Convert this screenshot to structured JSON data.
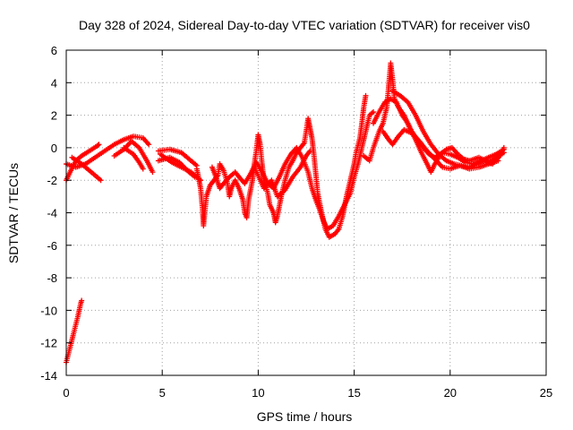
{
  "chart_data": {
    "type": "scatter",
    "title": "Day 328 of 2024, Sidereal Day-to-day VTEC variation (SDTVAR) for receiver vis0",
    "xlabel": "GPS time / hours",
    "ylabel": "SDTVAR / TECUs",
    "xlim": [
      0,
      25
    ],
    "ylim": [
      -14,
      6
    ],
    "xticks": [
      "0",
      "5",
      "10",
      "15",
      "20",
      "25"
    ],
    "yticks": [
      "6",
      "4",
      "2",
      "0",
      "-2",
      "-4",
      "-6",
      "-8",
      "-10",
      "-12",
      "-14"
    ],
    "grid": true,
    "marker": "+",
    "series": [
      {
        "name": "SDTVAR",
        "color": "#ff0000",
        "segments": [
          [
            [
              0.0,
              -13.2
            ],
            [
              0.15,
              -12.5
            ],
            [
              0.3,
              -11.8
            ],
            [
              0.45,
              -11.1
            ],
            [
              0.6,
              -10.4
            ],
            [
              0.75,
              -9.6
            ],
            [
              0.8,
              -9.4
            ]
          ],
          [
            [
              0.0,
              -2.0
            ],
            [
              0.2,
              -1.5
            ],
            [
              0.5,
              -0.8
            ],
            [
              0.8,
              -0.5
            ],
            [
              1.2,
              -0.2
            ],
            [
              1.6,
              0.1
            ],
            [
              1.7,
              0.2
            ]
          ],
          [
            [
              0.0,
              -1.0
            ],
            [
              0.5,
              -1.2
            ],
            [
              1.0,
              -1.0
            ],
            [
              1.5,
              -0.6
            ],
            [
              2.0,
              -0.2
            ],
            [
              2.5,
              0.2
            ],
            [
              3.0,
              0.5
            ],
            [
              3.5,
              0.7
            ],
            [
              4.0,
              0.6
            ],
            [
              4.3,
              0.2
            ]
          ],
          [
            [
              0.3,
              -0.6
            ],
            [
              0.8,
              -1.0
            ],
            [
              1.2,
              -1.4
            ],
            [
              1.5,
              -1.7
            ],
            [
              1.8,
              -2.0
            ]
          ],
          [
            [
              2.5,
              -0.5
            ],
            [
              3.0,
              -0.1
            ],
            [
              3.4,
              0.4
            ],
            [
              3.8,
              0.0
            ],
            [
              4.2,
              -0.8
            ],
            [
              4.5,
              -1.5
            ]
          ],
          [
            [
              3.0,
              0.0
            ],
            [
              3.5,
              -0.4
            ],
            [
              3.8,
              -0.9
            ],
            [
              4.0,
              -1.3
            ]
          ],
          [
            [
              4.8,
              -0.2
            ],
            [
              5.4,
              -0.1
            ],
            [
              6.0,
              -0.3
            ],
            [
              6.4,
              -0.7
            ],
            [
              6.8,
              -1.1
            ]
          ],
          [
            [
              4.8,
              -0.8
            ],
            [
              5.4,
              -0.6
            ],
            [
              5.9,
              -0.9
            ],
            [
              6.3,
              -1.4
            ],
            [
              6.7,
              -1.8
            ]
          ],
          [
            [
              4.9,
              -0.4
            ],
            [
              5.5,
              -0.9
            ],
            [
              6.0,
              -1.2
            ],
            [
              6.5,
              -1.5
            ],
            [
              7.0,
              -2.0
            ]
          ],
          [
            [
              6.8,
              -1.3
            ],
            [
              7.0,
              -2.5
            ],
            [
              7.1,
              -3.8
            ],
            [
              7.15,
              -4.8
            ],
            [
              7.3,
              -3.0
            ],
            [
              7.5,
              -2.3
            ],
            [
              7.7,
              -2.0
            ],
            [
              7.9,
              -1.7
            ],
            [
              8.0,
              -1.0
            ],
            [
              8.2,
              -1.4
            ],
            [
              8.4,
              -2.2
            ],
            [
              8.5,
              -3.0
            ],
            [
              8.6,
              -2.5
            ],
            [
              8.8,
              -2.0
            ],
            [
              9.0,
              -2.5
            ],
            [
              9.2,
              -3.2
            ],
            [
              9.3,
              -4.0
            ],
            [
              9.4,
              -4.3
            ],
            [
              9.5,
              -3.2
            ],
            [
              9.7,
              -2.0
            ],
            [
              9.8,
              -1.0
            ],
            [
              9.9,
              -0.2
            ],
            [
              10.0,
              0.8
            ],
            [
              10.1,
              0.2
            ],
            [
              10.2,
              -1.0
            ],
            [
              10.3,
              -2.0
            ],
            [
              10.5,
              -2.8
            ],
            [
              10.6,
              -3.5
            ],
            [
              10.8,
              -4.0
            ],
            [
              10.9,
              -4.6
            ],
            [
              11.0,
              -4.2
            ],
            [
              11.2,
              -3.0
            ],
            [
              11.4,
              -2.0
            ],
            [
              11.6,
              -1.2
            ],
            [
              11.8,
              -0.8
            ],
            [
              12.0,
              -0.3
            ],
            [
              12.2,
              0.0
            ],
            [
              12.4,
              0.3
            ],
            [
              12.5,
              1.0
            ],
            [
              12.6,
              1.8
            ],
            [
              12.7,
              1.2
            ],
            [
              12.8,
              0.6
            ],
            [
              12.9,
              -0.4
            ],
            [
              13.0,
              -1.6
            ],
            [
              13.1,
              -2.8
            ],
            [
              13.3,
              -4.0
            ],
            [
              13.5,
              -5.0
            ],
            [
              13.7,
              -5.5
            ],
            [
              14.0,
              -5.3
            ],
            [
              14.2,
              -5.0
            ],
            [
              14.4,
              -4.2
            ],
            [
              14.6,
              -3.0
            ],
            [
              14.8,
              -2.0
            ],
            [
              15.0,
              -1.0
            ],
            [
              15.1,
              -0.3
            ],
            [
              15.3,
              0.6
            ],
            [
              15.4,
              1.5
            ],
            [
              15.5,
              2.5
            ],
            [
              15.6,
              3.2
            ]
          ],
          [
            [
              7.6,
              -1.2
            ],
            [
              7.8,
              -1.8
            ],
            [
              8.0,
              -2.5
            ],
            [
              8.2,
              -2.2
            ],
            [
              8.5,
              -1.8
            ],
            [
              8.8,
              -1.5
            ],
            [
              9.0,
              -1.8
            ],
            [
              9.3,
              -2.2
            ],
            [
              9.6,
              -1.6
            ],
            [
              9.9,
              -0.9
            ],
            [
              10.2,
              -1.5
            ],
            [
              10.5,
              -2.2
            ],
            [
              10.8,
              -2.5
            ],
            [
              11.1,
              -1.8
            ],
            [
              11.4,
              -1.0
            ],
            [
              11.7,
              -0.4
            ],
            [
              12.0,
              0.0
            ],
            [
              12.3,
              -0.6
            ],
            [
              12.6,
              -1.5
            ],
            [
              12.8,
              -2.5
            ],
            [
              13.0,
              -3.2
            ],
            [
              13.2,
              -3.8
            ],
            [
              13.4,
              -4.5
            ],
            [
              13.6,
              -5.0
            ],
            [
              13.9,
              -4.8
            ],
            [
              14.2,
              -4.2
            ],
            [
              14.5,
              -3.5
            ],
            [
              14.8,
              -2.8
            ],
            [
              15.0,
              -1.8
            ],
            [
              15.2,
              -1.0
            ],
            [
              15.4,
              0.0
            ],
            [
              15.6,
              1.0
            ],
            [
              15.8,
              2.0
            ],
            [
              16.0,
              2.2
            ]
          ],
          [
            [
              9.8,
              -1.2
            ],
            [
              10.3,
              -2.5
            ],
            [
              10.7,
              -2.0
            ],
            [
              11.0,
              -3.0
            ],
            [
              11.4,
              -2.6
            ],
            [
              11.8,
              -1.8
            ],
            [
              12.2,
              -1.2
            ],
            [
              12.5,
              -0.5
            ],
            [
              12.7,
              -0.2
            ]
          ],
          [
            [
              15.5,
              -0.5
            ],
            [
              15.8,
              -0.8
            ],
            [
              16.0,
              0.0
            ],
            [
              16.3,
              1.0
            ],
            [
              16.5,
              1.5
            ],
            [
              16.7,
              2.5
            ],
            [
              16.8,
              3.8
            ],
            [
              16.9,
              5.2
            ],
            [
              17.0,
              4.2
            ],
            [
              17.1,
              3.0
            ],
            [
              17.3,
              2.5
            ],
            [
              17.6,
              2.0
            ],
            [
              17.9,
              1.2
            ],
            [
              18.2,
              0.5
            ],
            [
              18.5,
              -0.3
            ],
            [
              18.8,
              -1.0
            ],
            [
              19.0,
              -1.5
            ],
            [
              19.2,
              -1.0
            ],
            [
              19.5,
              -0.4
            ],
            [
              19.8,
              -0.1
            ],
            [
              20.1,
              0.0
            ],
            [
              20.4,
              -0.4
            ],
            [
              20.7,
              -0.7
            ],
            [
              21.0,
              -0.8
            ],
            [
              21.5,
              -0.6
            ],
            [
              22.0,
              -0.9
            ],
            [
              22.4,
              -0.6
            ],
            [
              22.8,
              -0.3
            ]
          ],
          [
            [
              16.0,
              1.5
            ],
            [
              16.3,
              2.2
            ],
            [
              16.6,
              2.8
            ],
            [
              16.9,
              3.0
            ],
            [
              17.2,
              2.8
            ],
            [
              17.5,
              2.0
            ],
            [
              17.8,
              1.5
            ],
            [
              18.0,
              1.0
            ],
            [
              18.3,
              0.5
            ],
            [
              18.6,
              0.0
            ],
            [
              18.9,
              -0.4
            ],
            [
              19.2,
              -0.6
            ],
            [
              19.6,
              -0.3
            ],
            [
              20.0,
              -0.4
            ],
            [
              20.4,
              -0.6
            ],
            [
              20.8,
              -0.9
            ],
            [
              21.2,
              -1.0
            ],
            [
              21.6,
              -0.8
            ],
            [
              22.0,
              -0.6
            ],
            [
              22.4,
              -0.4
            ],
            [
              22.8,
              -0.1
            ]
          ],
          [
            [
              17.0,
              3.5
            ],
            [
              17.4,
              3.2
            ],
            [
              17.8,
              2.8
            ],
            [
              18.2,
              2.0
            ],
            [
              18.6,
              1.0
            ],
            [
              19.0,
              0.2
            ],
            [
              19.4,
              -0.4
            ],
            [
              19.8,
              -0.8
            ],
            [
              20.2,
              -1.0
            ],
            [
              20.6,
              -1.1
            ],
            [
              21.0,
              -1.2
            ],
            [
              21.4,
              -1.0
            ],
            [
              21.8,
              -0.8
            ],
            [
              22.2,
              -1.0
            ],
            [
              22.6,
              -0.5
            ],
            [
              22.8,
              0.0
            ]
          ],
          [
            [
              16.5,
              1.0
            ],
            [
              16.8,
              0.5
            ],
            [
              17.0,
              0.2
            ],
            [
              17.3,
              0.7
            ],
            [
              17.6,
              1.1
            ],
            [
              18.0,
              0.9
            ],
            [
              18.4,
              0.4
            ],
            [
              18.8,
              -0.2
            ],
            [
              19.2,
              -0.7
            ],
            [
              19.6,
              -1.2
            ],
            [
              20.0,
              -1.3
            ],
            [
              20.5,
              -1.1
            ],
            [
              21.0,
              -1.3
            ],
            [
              21.5,
              -1.2
            ],
            [
              22.0,
              -1.0
            ],
            [
              22.5,
              -0.8
            ]
          ]
        ]
      }
    ]
  }
}
